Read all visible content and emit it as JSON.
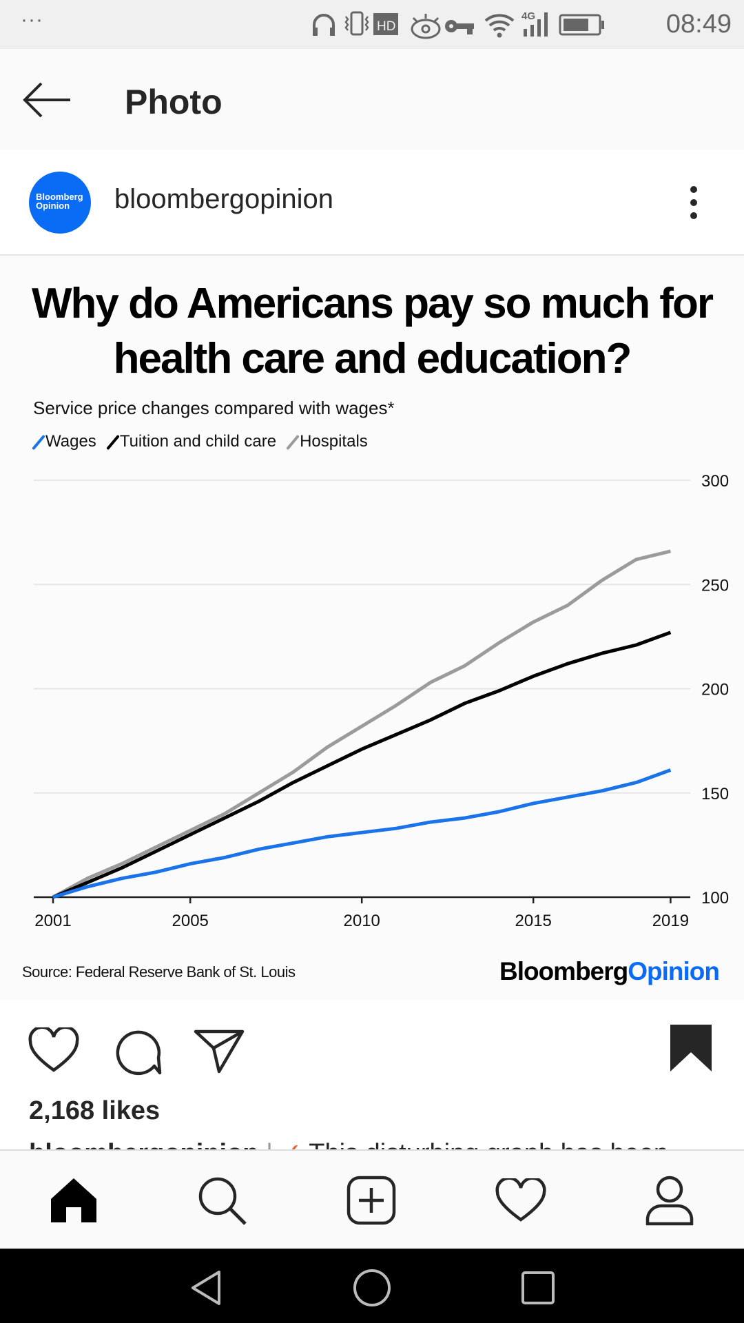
{
  "status_bar": {
    "menu": "···",
    "network": "4G",
    "time": "08:49",
    "icons": [
      "headphones-icon",
      "vibrate-icon",
      "hd-icon",
      "eye-icon",
      "key-icon",
      "wifi-icon",
      "signal-icon",
      "battery-icon"
    ]
  },
  "app_bar": {
    "back_icon": "arrow-left-icon",
    "title": "Photo"
  },
  "post": {
    "avatar_text_1": "Bloomberg",
    "avatar_text_2": "Opinion",
    "username": "bloombergopinion",
    "more_icon": "kebab-icon",
    "likes": "2,168 likes",
    "caption_user": "bloombergopinion",
    "caption_text": "This disturbing graph has been"
  },
  "chart_data": {
    "type": "line",
    "title": "Why do Americans pay so much for health care and education?",
    "subtitle": "Service price changes compared with wages*",
    "xlabel": "",
    "ylabel": "",
    "x": [
      2001,
      2002,
      2003,
      2004,
      2005,
      2006,
      2007,
      2008,
      2009,
      2010,
      2011,
      2012,
      2013,
      2014,
      2015,
      2016,
      2017,
      2018,
      2019
    ],
    "xticks": [
      "2001",
      "2005",
      "2010",
      "2015",
      "2019"
    ],
    "xtick_values": [
      2001,
      2005,
      2010,
      2015,
      2019
    ],
    "yticks": [
      "100",
      "150",
      "200",
      "250",
      "300"
    ],
    "ylim": [
      100,
      300
    ],
    "grid": true,
    "legend_position": "top-left",
    "series": [
      {
        "name": "Wages",
        "color": "#1a73e8",
        "values": [
          100,
          105,
          109,
          112,
          116,
          119,
          123,
          126,
          129,
          131,
          133,
          136,
          138,
          141,
          145,
          148,
          151,
          155,
          161
        ]
      },
      {
        "name": "Tuition and child care",
        "color": "#000000",
        "values": [
          100,
          107,
          114,
          122,
          130,
          138,
          146,
          155,
          163,
          171,
          178,
          185,
          193,
          199,
          206,
          212,
          217,
          221,
          227
        ]
      },
      {
        "name": "Hospitals",
        "color": "#9b9b9b",
        "values": [
          100,
          109,
          116,
          124,
          132,
          140,
          150,
          160,
          172,
          182,
          192,
          203,
          211,
          222,
          232,
          240,
          252,
          262,
          266
        ]
      }
    ],
    "source": "Source: Federal Reserve Bank of St. Louis",
    "logo_part1": "Bloomberg",
    "logo_part2": "Opinion"
  },
  "actions": [
    "heart-icon",
    "comment-icon",
    "send-icon",
    "bookmark-icon"
  ],
  "bottom_nav": [
    "home-icon",
    "search-icon",
    "add-icon",
    "activity-icon",
    "profile-icon"
  ],
  "system_nav": [
    "back-icon",
    "home-circle-icon",
    "recents-icon"
  ]
}
